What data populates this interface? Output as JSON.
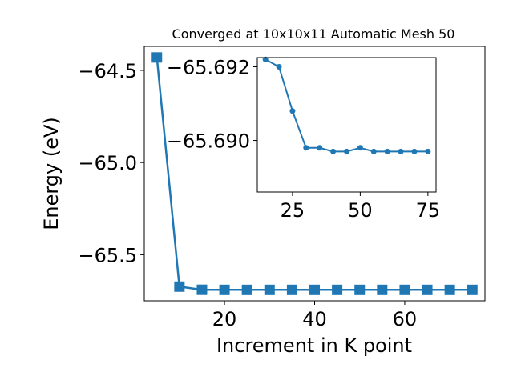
{
  "chart_data": [
    {
      "type": "line",
      "title": "Converged at 10x10x11 Automatic Mesh 50",
      "xlabel": "Increment in K point",
      "ylabel": "Energy (eV)",
      "x": [
        5,
        10,
        15,
        20,
        25,
        30,
        35,
        40,
        45,
        50,
        55,
        60,
        65,
        70,
        75
      ],
      "series": [
        {
          "values": [
            -64.43,
            -65.673,
            -65.6901,
            -65.6906,
            -65.6907,
            -65.6906,
            -65.6906,
            -65.6906,
            -65.6906,
            -65.6906,
            -65.6906,
            -65.6906,
            -65.6906,
            -65.6906,
            -65.6906
          ],
          "color": "#1f77b4",
          "marker": "square"
        }
      ],
      "xlim": [
        2.2,
        77.8
      ],
      "ylim": [
        -65.75,
        -64.37
      ],
      "xticks": [
        20,
        40,
        60
      ],
      "yticks": [
        -64.5,
        -65.0,
        -65.5
      ],
      "xtick_labels": [
        "20",
        "40",
        "60"
      ],
      "ytick_labels": [
        "−64.5",
        "−65.0",
        "−65.5"
      ],
      "grid": false
    },
    {
      "type": "line",
      "x": [
        15,
        20,
        25,
        30,
        35,
        40,
        45,
        50,
        55,
        60,
        65,
        70,
        75
      ],
      "series": [
        {
          "values": [
            -65.6922,
            -65.692,
            -65.6908,
            -65.6898,
            -65.6898,
            -65.6897,
            -65.6897,
            -65.6898,
            -65.6897,
            -65.6897,
            -65.6897,
            -65.6897,
            -65.6897
          ],
          "color": "#1f77b4",
          "marker": "circle"
        }
      ],
      "xlim": [
        12,
        78
      ],
      "ylim": [
        -65.6886,
        -65.69225
      ],
      "xticks": [
        25,
        50,
        75
      ],
      "yticks": [
        -65.692,
        -65.69
      ],
      "xtick_labels": [
        "25",
        "50",
        "75"
      ],
      "ytick_labels": [
        "−65.692",
        "−65.690"
      ],
      "grid": false
    }
  ]
}
